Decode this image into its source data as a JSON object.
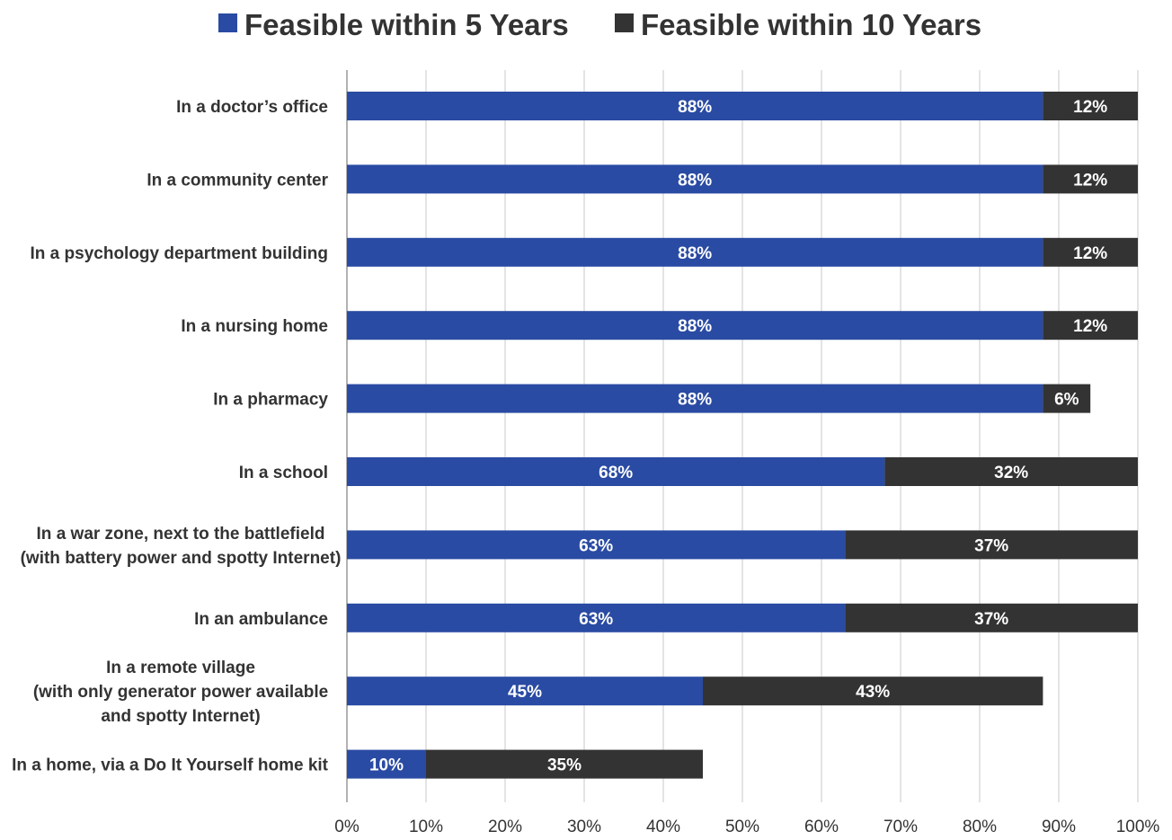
{
  "chart_data": {
    "type": "bar",
    "orientation": "horizontal",
    "stacked": true,
    "title": "",
    "xlabel": "",
    "ylabel": "",
    "xlim": [
      0,
      100
    ],
    "x_ticks": [
      0,
      10,
      20,
      30,
      40,
      50,
      60,
      70,
      80,
      90,
      100
    ],
    "x_tick_labels": [
      "0%",
      "10%",
      "20%",
      "30%",
      "40%",
      "50%",
      "60%",
      "70%",
      "80%",
      "90%",
      "100%"
    ],
    "grid": "vertical",
    "legend": "top-center",
    "categories": [
      [
        "In a doctor’s office"
      ],
      [
        "In a community center"
      ],
      [
        "In a psychology department building"
      ],
      [
        "In a nursing home"
      ],
      [
        "In a pharmacy"
      ],
      [
        "In a school"
      ],
      [
        "In a war zone, next to the battlefield",
        "(with battery power and spotty Internet)"
      ],
      [
        "In an ambulance"
      ],
      [
        "In a remote village",
        "(with only generator power available",
        "and spotty Internet)"
      ],
      [
        "In a home, via a Do It Yourself home kit"
      ]
    ],
    "series": [
      {
        "name": "Feasible within 5 Years",
        "color": "#2a4ba3",
        "values": [
          88,
          88,
          88,
          88,
          88,
          68,
          63,
          63,
          45,
          10
        ],
        "labels": [
          "88%",
          "88%",
          "88%",
          "88%",
          "88%",
          "68%",
          "63%",
          "63%",
          "45%",
          "10%"
        ]
      },
      {
        "name": "Feasible within 10 Years",
        "color": "#333333",
        "values": [
          12,
          12,
          12,
          12,
          6,
          32,
          37,
          37,
          43,
          35
        ],
        "labels": [
          "12%",
          "12%",
          "12%",
          "12%",
          "6%",
          "32%",
          "37%",
          "37%",
          "43%",
          "35%"
        ]
      }
    ],
    "colors": {
      "grid": "#c8c8c8",
      "axis": "#999999",
      "text": "#333333",
      "bar_label": "#ffffff"
    }
  }
}
